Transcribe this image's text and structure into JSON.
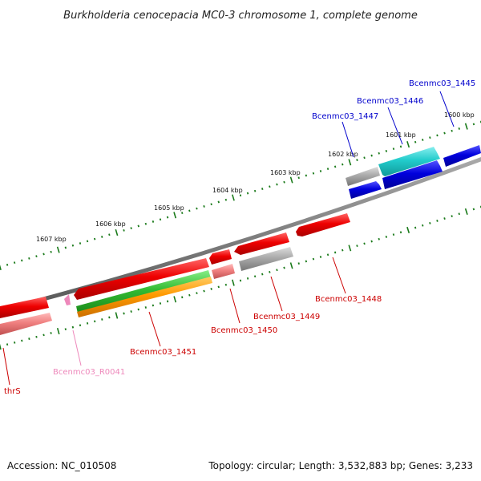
{
  "title": "Burkholderia cenocepacia MC0-3 chromosome 1, complete genome",
  "footer": {
    "accession": "Accession: NC_010508",
    "topology": "Topology: circular; Length: 3,532,883 bp; Genes: 3,233"
  },
  "colors": {
    "backbone": "#808080",
    "ticks": "#1a7a1a",
    "cds_forward": "#0000dd",
    "cds_reverse": "#ee0000",
    "rrna_pink": "#f08080",
    "pseudo_gray": "#aaaaaa",
    "cyan": "#22cccc",
    "green": "#33bb33",
    "orange": "#ff9900",
    "rna_label": "#ee88bb"
  },
  "kbp_labels": [
    "1600 kbp",
    "1601 kbp",
    "1602 kbp",
    "1603 kbp",
    "1604 kbp",
    "1605 kbp",
    "1606 kbp",
    "1607 kbp"
  ],
  "gene_labels": {
    "bcenmc03_1445": "Bcenmc03_1445",
    "bcenmc03_1446": "Bcenmc03_1446",
    "bcenmc03_1447": "Bcenmc03_1447",
    "bcenmc03_1448": "Bcenmc03_1448",
    "bcenmc03_1449": "Bcenmc03_1449",
    "bcenmc03_1450": "Bcenmc03_1450",
    "bcenmc03_1451": "Bcenmc03_1451",
    "bcenmc03_r0041": "Bcenmc03_R0041",
    "thrs": "thrS"
  }
}
